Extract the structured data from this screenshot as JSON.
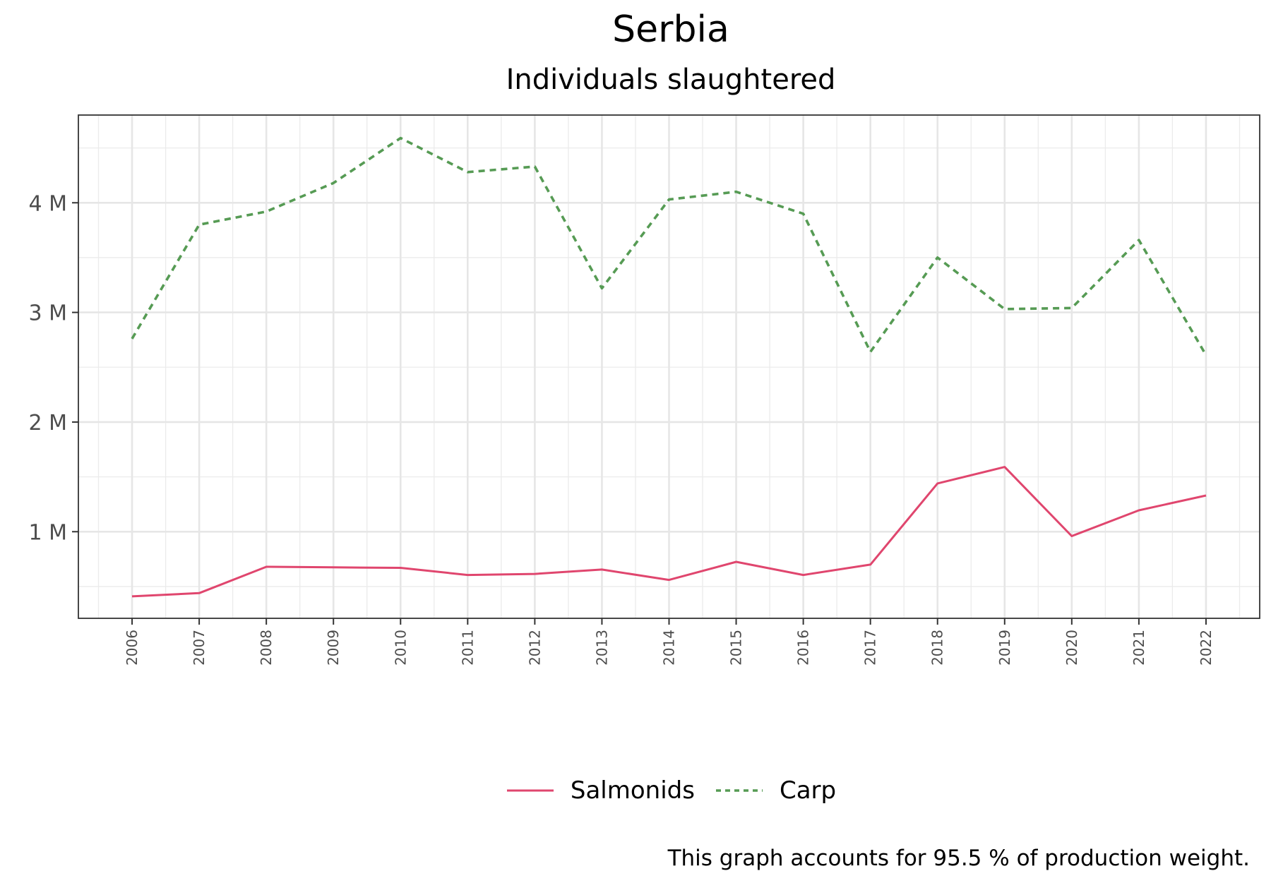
{
  "chart_data": {
    "type": "line",
    "title": "Serbia",
    "subtitle": "Individuals slaughtered",
    "xlabel": "",
    "ylabel": "",
    "x": [
      2006,
      2007,
      2008,
      2009,
      2010,
      2011,
      2012,
      2013,
      2014,
      2015,
      2016,
      2017,
      2018,
      2019,
      2020,
      2021,
      2022
    ],
    "xlim": [
      2005.2,
      2022.8
    ],
    "ylim": [
      210000,
      4800000
    ],
    "y_ticks": [
      1000000,
      2000000,
      3000000,
      4000000
    ],
    "y_tick_labels": [
      "1 M",
      "2 M",
      "3 M",
      "4 M"
    ],
    "grid": true,
    "legend_position": "bottom",
    "series": [
      {
        "name": "Salmonids",
        "color": "#e0466e",
        "dash": "solid",
        "values": [
          410000,
          440000,
          680000,
          675000,
          670000,
          605000,
          615000,
          655000,
          560000,
          725000,
          605000,
          700000,
          1440000,
          1590000,
          960000,
          1195000,
          1330000
        ]
      },
      {
        "name": "Carp",
        "color": "#569b54",
        "dash": "dotted",
        "values": [
          2760000,
          3800000,
          3920000,
          4180000,
          4590000,
          4280000,
          4330000,
          3220000,
          4030000,
          4100000,
          3900000,
          2640000,
          3500000,
          3030000,
          3040000,
          3660000,
          2610000
        ]
      }
    ],
    "caption": "This graph accounts for 95.5 % of production weight."
  }
}
